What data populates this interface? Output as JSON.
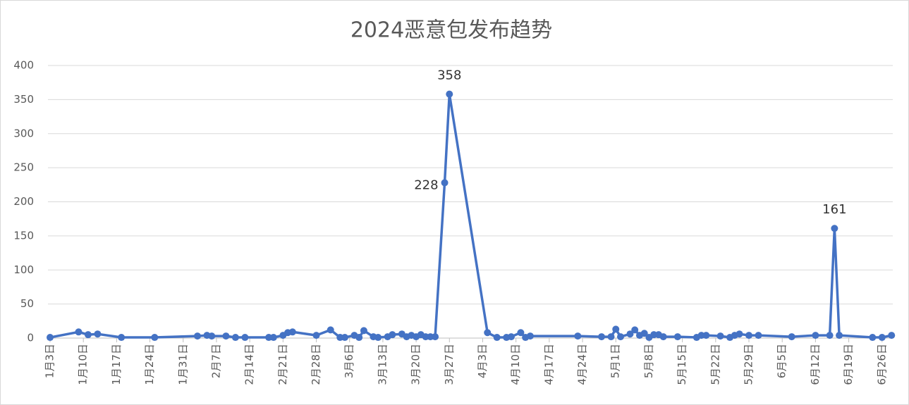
{
  "chart_data": {
    "type": "line",
    "title": "2024恶意包发布趋势",
    "x": [
      "01-03",
      "01-09",
      "01-11",
      "01-13",
      "01-18",
      "01-25",
      "02-03",
      "02-05",
      "02-06",
      "02-09",
      "02-11",
      "02-13",
      "02-18",
      "02-19",
      "02-21",
      "02-22",
      "02-23",
      "02-28",
      "03-02",
      "03-04",
      "03-05",
      "03-07",
      "03-08",
      "03-09",
      "03-11",
      "03-12",
      "03-14",
      "03-15",
      "03-17",
      "03-18",
      "03-19",
      "03-20",
      "03-21",
      "03-22",
      "03-23",
      "03-24",
      "03-26",
      "03-27",
      "04-04",
      "04-06",
      "04-08",
      "04-09",
      "04-11",
      "04-12",
      "04-13",
      "04-23",
      "04-28",
      "04-30",
      "05-01",
      "05-02",
      "05-04",
      "05-05",
      "05-06",
      "05-07",
      "05-08",
      "05-09",
      "05-10",
      "05-11",
      "05-14",
      "05-18",
      "05-19",
      "05-20",
      "05-23",
      "05-25",
      "05-26",
      "05-27",
      "05-29",
      "05-31",
      "06-07",
      "06-12",
      "06-15",
      "06-16",
      "06-17",
      "06-24",
      "06-26",
      "06-28"
    ],
    "series": [
      {
        "name": "恶意包",
        "color": "#4472c4",
        "values": [
          1,
          9,
          5,
          6,
          1,
          1,
          3,
          4,
          3,
          3,
          1,
          1,
          1,
          1,
          4,
          8,
          9,
          4,
          12,
          1,
          1,
          4,
          1,
          11,
          2,
          1,
          2,
          5,
          6,
          2,
          4,
          2,
          5,
          2,
          2,
          2,
          228,
          358,
          8,
          1,
          1,
          2,
          8,
          1,
          3,
          3,
          2,
          2,
          13,
          2,
          6,
          12,
          4,
          7,
          1,
          5,
          5,
          2,
          2,
          1,
          4,
          4,
          3,
          1,
          4,
          6,
          4,
          4,
          2,
          4,
          4,
          161,
          4,
          1,
          1,
          4
        ],
        "value_labels": [
          null,
          null,
          null,
          null,
          null,
          null,
          null,
          null,
          null,
          null,
          null,
          null,
          null,
          null,
          null,
          null,
          null,
          null,
          null,
          null,
          null,
          null,
          null,
          null,
          null,
          null,
          null,
          null,
          null,
          null,
          null,
          null,
          null,
          null,
          null,
          null,
          "228",
          "358",
          null,
          null,
          null,
          null,
          null,
          null,
          null,
          null,
          null,
          null,
          null,
          null,
          null,
          null,
          null,
          null,
          null,
          null,
          null,
          null,
          null,
          null,
          null,
          null,
          null,
          null,
          null,
          null,
          null,
          null,
          null,
          null,
          null,
          "161",
          null,
          null,
          null,
          null
        ]
      }
    ],
    "xlim": [
      "01-03",
      "06-29"
    ],
    "xticks": [
      {
        "value": "01-03",
        "label": "1月3日"
      },
      {
        "value": "01-10",
        "label": "1月10日"
      },
      {
        "value": "01-17",
        "label": "1月17日"
      },
      {
        "value": "01-24",
        "label": "1月24日"
      },
      {
        "value": "01-31",
        "label": "1月31日"
      },
      {
        "value": "02-07",
        "label": "2月7日"
      },
      {
        "value": "02-14",
        "label": "2月14日"
      },
      {
        "value": "02-21",
        "label": "2月21日"
      },
      {
        "value": "02-28",
        "label": "2月28日"
      },
      {
        "value": "03-06",
        "label": "3月6日"
      },
      {
        "value": "03-13",
        "label": "3月13日"
      },
      {
        "value": "03-20",
        "label": "3月20日"
      },
      {
        "value": "03-27",
        "label": "3月27日"
      },
      {
        "value": "04-03",
        "label": "4月3日"
      },
      {
        "value": "04-10",
        "label": "4月10日"
      },
      {
        "value": "04-17",
        "label": "4月17日"
      },
      {
        "value": "04-24",
        "label": "4月24日"
      },
      {
        "value": "05-01",
        "label": "5月1日"
      },
      {
        "value": "05-08",
        "label": "5月8日"
      },
      {
        "value": "05-15",
        "label": "5月15日"
      },
      {
        "value": "05-22",
        "label": "5月22日"
      },
      {
        "value": "05-29",
        "label": "5月29日"
      },
      {
        "value": "06-05",
        "label": "6月5日"
      },
      {
        "value": "06-12",
        "label": "6月12日"
      },
      {
        "value": "06-19",
        "label": "6月19日"
      },
      {
        "value": "06-26",
        "label": "6月26日"
      }
    ],
    "ylim": [
      0,
      400
    ],
    "yticks": [
      0,
      50,
      100,
      150,
      200,
      250,
      300,
      350,
      400
    ],
    "grid": true
  }
}
